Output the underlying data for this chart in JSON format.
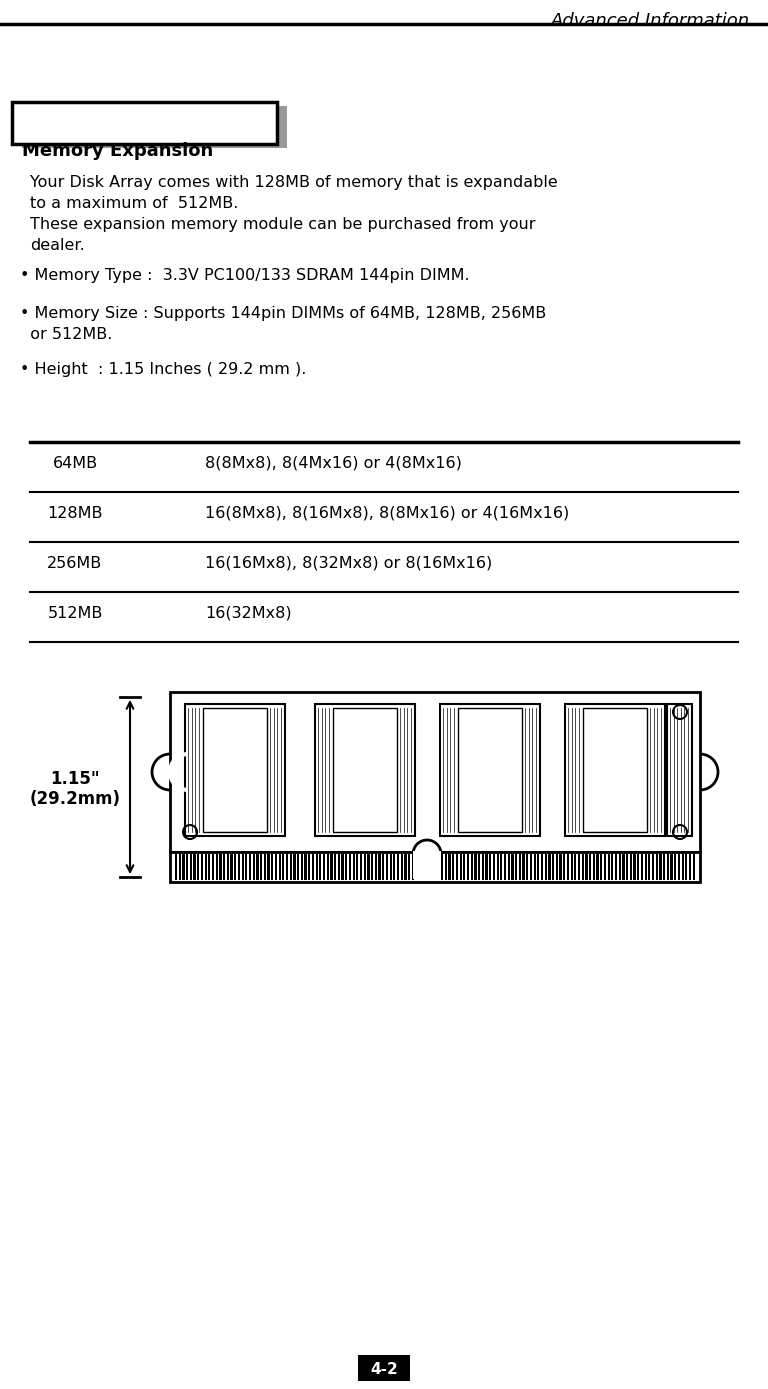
{
  "title": "Advanced Information",
  "section_title": "Memory Expansion",
  "para_line1": "Your Disk Array comes with 128MB of memory that is expandable",
  "para_line2": "to a maximum of  512MB.",
  "para_line3": "These expansion memory module can be purchased from your",
  "para_line4": "dealer.",
  "bullet1": "• Memory Type :  3.3V PC100/133 SDRAM 144pin DIMM.",
  "bullet2a": "• Memory Size : Supports 144pin DIMMs of 64MB, 128MB, 256MB",
  "bullet2b": "  or 512MB.",
  "bullet3": "• Height  : 1.15 Inches ( 29.2 mm ).",
  "table_rows": [
    [
      "64MB",
      "8(8Mx8), 8(4Mx16) or 4(8Mx16)"
    ],
    [
      "128MB",
      "16(8Mx8), 8(16Mx8), 8(8Mx16) or 4(16Mx16)"
    ],
    [
      "256MB",
      "16(16Mx8), 8(32Mx8) or 8(16Mx16)"
    ],
    [
      "512MB",
      "16(32Mx8)"
    ]
  ],
  "dim_label1": "1.15\"",
  "dim_label2": "(29.2mm)",
  "page_label": "4-2",
  "bg_color": "#ffffff",
  "text_color": "#000000",
  "gray_color": "#999999"
}
